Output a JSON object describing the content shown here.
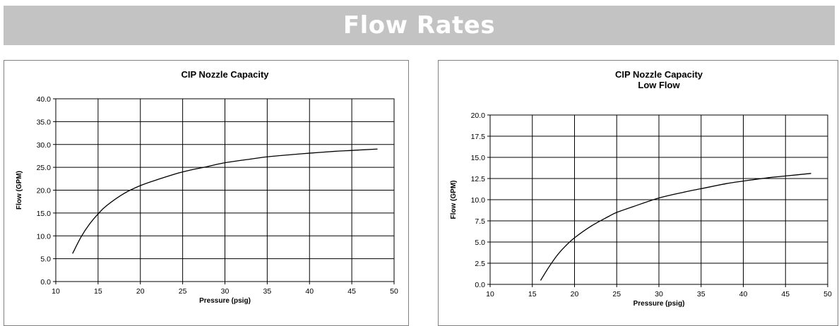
{
  "header": {
    "title": "Flow Rates"
  },
  "colors": {
    "banner_bg": "#c3c3c3",
    "banner_text": "#ffffff",
    "line": "#000000",
    "grid": "#000000"
  },
  "chart_data": [
    {
      "type": "line",
      "title": "CIP Nozzle Capacity",
      "subtitle": "",
      "xlabel": "Pressure (psig)",
      "ylabel": "Flow (GPM)",
      "xlim": [
        10,
        50
      ],
      "ylim": [
        0,
        40
      ],
      "x_ticks": [
        10,
        15,
        20,
        25,
        30,
        35,
        40,
        45,
        50
      ],
      "x_tick_labels": [
        "10",
        "15",
        "20",
        "25",
        "30",
        "35",
        "40",
        "45",
        "50"
      ],
      "y_ticks": [
        0,
        5,
        10,
        15,
        20,
        25,
        30,
        35,
        40
      ],
      "y_tick_labels": [
        "0.0",
        "5.0",
        "10.0",
        "15.0",
        "20.0",
        "25.0",
        "30.0",
        "35.0",
        "40.0"
      ],
      "grid": true,
      "legend": "none",
      "series": [
        {
          "x": [
            12,
            13,
            14,
            15,
            16,
            18,
            20,
            22,
            25,
            28,
            30,
            33,
            35,
            38,
            40,
            43,
            45,
            48
          ],
          "y": [
            6.2,
            9.8,
            12.6,
            14.8,
            16.6,
            19.2,
            21.0,
            22.3,
            24.0,
            25.2,
            26.0,
            26.8,
            27.3,
            27.8,
            28.1,
            28.5,
            28.7,
            29.0
          ]
        }
      ]
    },
    {
      "type": "line",
      "title": "CIP Nozzle Capacity",
      "subtitle": "Low Flow",
      "xlabel": "Pressure (psig)",
      "ylabel": "Flow (GPM)",
      "xlim": [
        10,
        50
      ],
      "ylim": [
        0,
        20
      ],
      "x_ticks": [
        10,
        15,
        20,
        25,
        30,
        35,
        40,
        45,
        50
      ],
      "x_tick_labels": [
        "10",
        "15",
        "20",
        "25",
        "30",
        "35",
        "40",
        "45",
        "50"
      ],
      "y_ticks": [
        0,
        2.5,
        5,
        7.5,
        10,
        12.5,
        15,
        17.5,
        20
      ],
      "y_tick_labels": [
        "0.0",
        "2.5",
        "5.0",
        "7.5",
        "10.0",
        "12.5",
        "15.0",
        "17.5",
        "20.0"
      ],
      "grid": true,
      "legend": "none",
      "series": [
        {
          "x": [
            16,
            17,
            18,
            19,
            20,
            22,
            24,
            25,
            27,
            30,
            33,
            35,
            38,
            40,
            43,
            45,
            48
          ],
          "y": [
            0.5,
            2.1,
            3.5,
            4.6,
            5.5,
            6.9,
            8.0,
            8.5,
            9.2,
            10.2,
            10.9,
            11.3,
            11.9,
            12.2,
            12.6,
            12.8,
            13.1
          ]
        }
      ]
    }
  ]
}
